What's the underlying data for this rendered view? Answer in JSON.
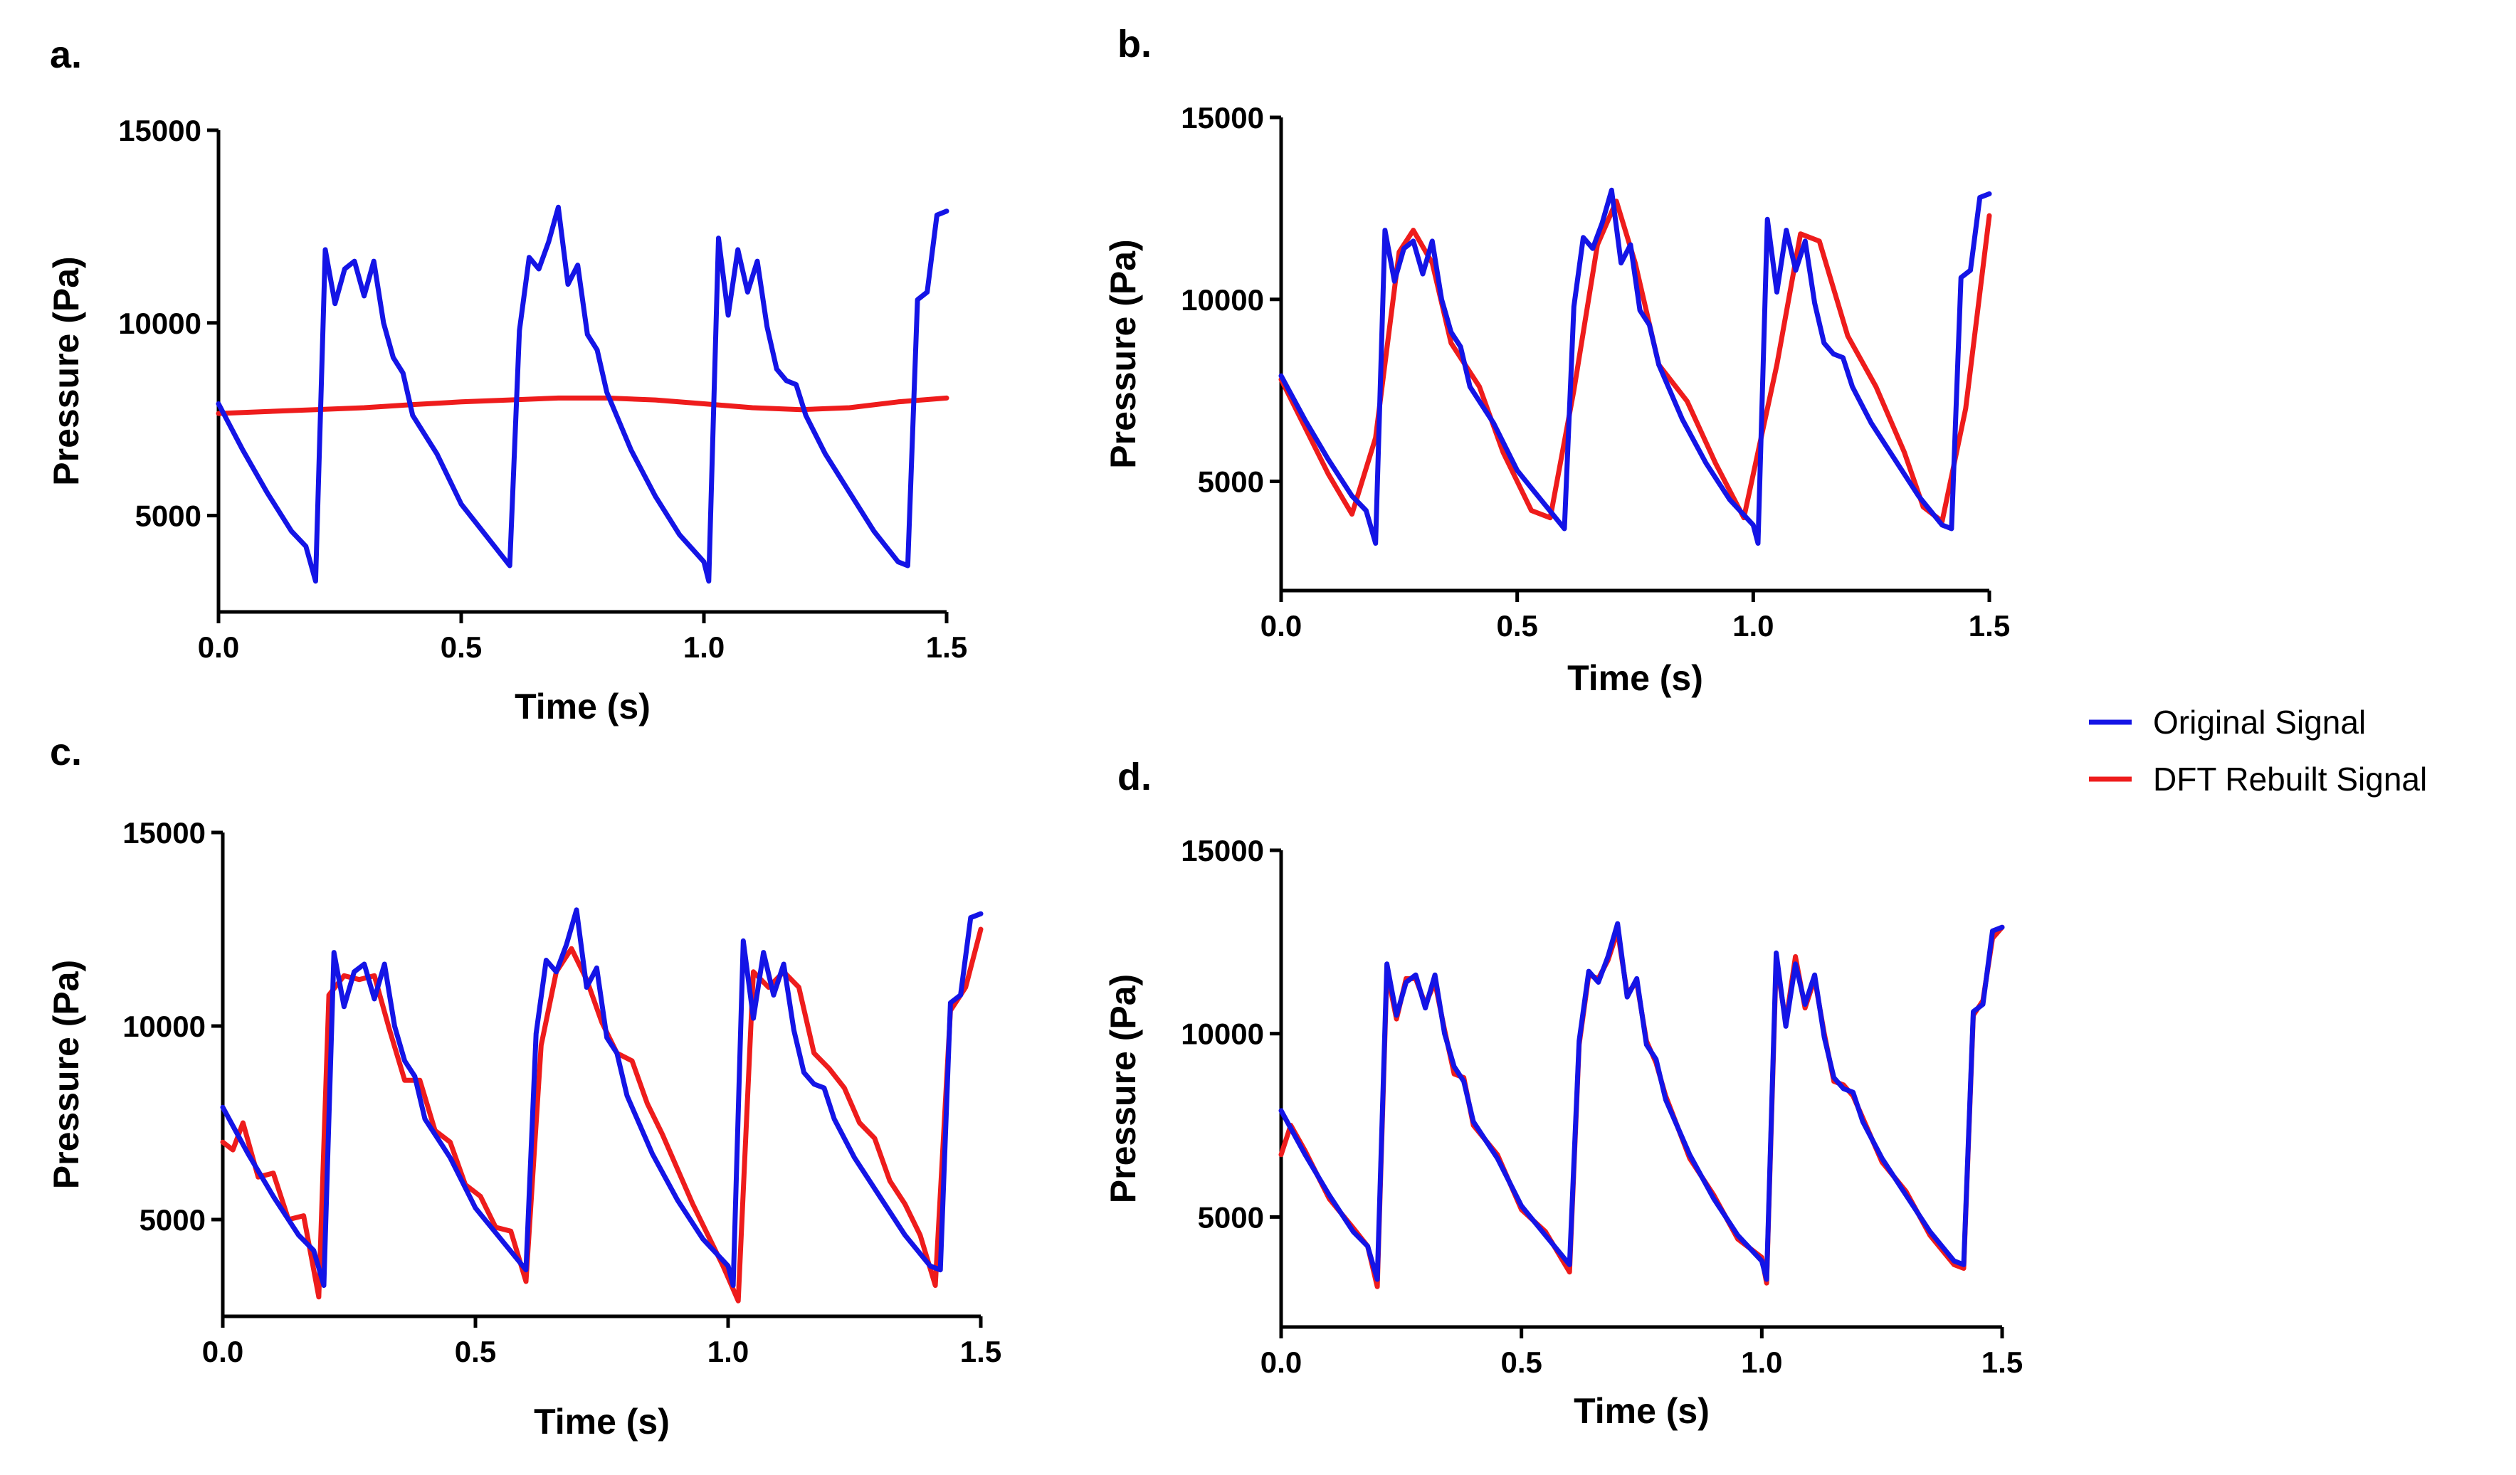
{
  "legend": {
    "position": "right",
    "items": [
      {
        "name": "Original Signal",
        "color": "#1414e6"
      },
      {
        "name": "DFT Rebuilt Signal",
        "color": "#ee1c1c"
      }
    ]
  },
  "chart_data": [
    {
      "type": "line",
      "panel": "a.",
      "xlabel": "Time (s)",
      "ylabel": "Pressure (Pa)",
      "xlim": [
        0,
        1.5
      ],
      "ylim": [
        2500,
        15000
      ],
      "xticks": [
        "0.0",
        "0.5",
        "1.0",
        "1.5"
      ],
      "yticks": [
        "5000",
        "10000",
        "15000"
      ],
      "xtick_values": [
        0,
        0.5,
        1.0,
        1.5
      ],
      "ytick_values": [
        5000,
        10000,
        15000
      ],
      "series": [
        {
          "name": "Original Signal",
          "color": "#1414e6",
          "x": [
            0,
            0.05,
            0.1,
            0.15,
            0.18,
            0.2,
            0.22,
            0.24,
            0.26,
            0.28,
            0.3,
            0.32,
            0.34,
            0.36,
            0.38,
            0.4,
            0.45,
            0.5,
            0.55,
            0.6,
            0.62,
            0.64,
            0.66,
            0.68,
            0.7,
            0.72,
            0.74,
            0.76,
            0.78,
            0.8,
            0.85,
            0.9,
            0.95,
            1.0,
            1.01,
            1.03,
            1.05,
            1.07,
            1.09,
            1.11,
            1.13,
            1.15,
            1.17,
            1.19,
            1.21,
            1.25,
            1.3,
            1.35,
            1.4,
            1.42,
            1.44,
            1.46,
            1.48,
            1.5
          ],
          "y": [
            7900,
            6700,
            5600,
            4600,
            4200,
            3300,
            11900,
            10500,
            11400,
            11600,
            10700,
            11600,
            10000,
            9100,
            8700,
            7600,
            6600,
            5300,
            4500,
            3700,
            9800,
            11700,
            11400,
            12100,
            13000,
            11000,
            11500,
            9700,
            9300,
            8200,
            6700,
            5500,
            4500,
            3800,
            3300,
            12200,
            10200,
            11900,
            10800,
            11600,
            9900,
            8800,
            8500,
            8400,
            7600,
            6600,
            5600,
            4600,
            3800,
            3700,
            10600,
            10800,
            12800,
            12900
          ]
        },
        {
          "name": "DFT Rebuilt Signal",
          "color": "#ee1c1c",
          "x": [
            0,
            0.1,
            0.2,
            0.3,
            0.4,
            0.5,
            0.6,
            0.7,
            0.8,
            0.9,
            1.0,
            1.1,
            1.2,
            1.3,
            1.4,
            1.5
          ],
          "y": [
            7650,
            7700,
            7750,
            7800,
            7880,
            7950,
            8000,
            8050,
            8050,
            8000,
            7900,
            7800,
            7750,
            7800,
            7950,
            8050
          ]
        }
      ]
    },
    {
      "type": "line",
      "panel": "b.",
      "xlabel": "Time (s)",
      "ylabel": "Pressure (Pa)",
      "xlim": [
        0,
        1.5
      ],
      "ylim": [
        2000,
        15000
      ],
      "xticks": [
        "0.0",
        "0.5",
        "1.0",
        "1.5"
      ],
      "yticks": [
        "5000",
        "10000",
        "15000"
      ],
      "xtick_values": [
        0,
        0.5,
        1.0,
        1.5
      ],
      "ytick_values": [
        5000,
        10000,
        15000
      ],
      "series": [
        {
          "name": "Original Signal",
          "color": "#1414e6",
          "x": [
            0,
            0.05,
            0.1,
            0.15,
            0.18,
            0.2,
            0.22,
            0.24,
            0.26,
            0.28,
            0.3,
            0.32,
            0.34,
            0.36,
            0.38,
            0.4,
            0.45,
            0.5,
            0.55,
            0.6,
            0.62,
            0.64,
            0.66,
            0.68,
            0.7,
            0.72,
            0.74,
            0.76,
            0.78,
            0.8,
            0.85,
            0.9,
            0.95,
            1.0,
            1.01,
            1.03,
            1.05,
            1.07,
            1.09,
            1.11,
            1.13,
            1.15,
            1.17,
            1.19,
            1.21,
            1.25,
            1.3,
            1.35,
            1.4,
            1.42,
            1.44,
            1.46,
            1.48,
            1.5
          ],
          "y": [
            7900,
            6700,
            5600,
            4600,
            4200,
            3300,
            11900,
            10500,
            11400,
            11600,
            10700,
            11600,
            10000,
            9100,
            8700,
            7600,
            6600,
            5300,
            4500,
            3700,
            9800,
            11700,
            11400,
            12100,
            13000,
            11000,
            11500,
            9700,
            9300,
            8200,
            6700,
            5500,
            4500,
            3800,
            3300,
            12200,
            10200,
            11900,
            10800,
            11600,
            9900,
            8800,
            8500,
            8400,
            7600,
            6600,
            5600,
            4600,
            3800,
            3700,
            10600,
            10800,
            12800,
            12900
          ]
        },
        {
          "name": "DFT Rebuilt Signal",
          "color": "#ee1c1c",
          "x": [
            0,
            0.05,
            0.1,
            0.15,
            0.2,
            0.25,
            0.28,
            0.32,
            0.36,
            0.42,
            0.47,
            0.53,
            0.57,
            0.62,
            0.67,
            0.71,
            0.75,
            0.8,
            0.86,
            0.92,
            0.98,
            1.05,
            1.1,
            1.14,
            1.2,
            1.26,
            1.32,
            1.36,
            1.4,
            1.45,
            1.5
          ],
          "y": [
            7800,
            6500,
            5200,
            4100,
            6200,
            11300,
            11900,
            11000,
            8800,
            7600,
            5800,
            4200,
            4000,
            7500,
            11500,
            12700,
            11000,
            8200,
            7200,
            5500,
            4000,
            8200,
            11800,
            11600,
            9000,
            7600,
            5800,
            4300,
            3900,
            7000,
            12300
          ]
        }
      ]
    },
    {
      "type": "line",
      "panel": "c.",
      "xlabel": "Time (s)",
      "ylabel": "Pressure (Pa)",
      "xlim": [
        0,
        1.5
      ],
      "ylim": [
        2500,
        15000
      ],
      "xticks": [
        "0.0",
        "0.5",
        "1.0",
        "1.5"
      ],
      "yticks": [
        "5000",
        "10000",
        "15000"
      ],
      "xtick_values": [
        0,
        0.5,
        1.0,
        1.5
      ],
      "ytick_values": [
        5000,
        10000,
        15000
      ],
      "series": [
        {
          "name": "Original Signal",
          "color": "#1414e6",
          "x": [
            0,
            0.05,
            0.1,
            0.15,
            0.18,
            0.2,
            0.22,
            0.24,
            0.26,
            0.28,
            0.3,
            0.32,
            0.34,
            0.36,
            0.38,
            0.4,
            0.45,
            0.5,
            0.55,
            0.6,
            0.62,
            0.64,
            0.66,
            0.68,
            0.7,
            0.72,
            0.74,
            0.76,
            0.78,
            0.8,
            0.85,
            0.9,
            0.95,
            1.0,
            1.01,
            1.03,
            1.05,
            1.07,
            1.09,
            1.11,
            1.13,
            1.15,
            1.17,
            1.19,
            1.21,
            1.25,
            1.3,
            1.35,
            1.4,
            1.42,
            1.44,
            1.46,
            1.48,
            1.5
          ],
          "y": [
            7900,
            6700,
            5600,
            4600,
            4200,
            3300,
            11900,
            10500,
            11400,
            11600,
            10700,
            11600,
            10000,
            9100,
            8700,
            7600,
            6600,
            5300,
            4500,
            3700,
            9800,
            11700,
            11400,
            12100,
            13000,
            11000,
            11500,
            9700,
            9300,
            8200,
            6700,
            5500,
            4500,
            3800,
            3300,
            12200,
            10200,
            11900,
            10800,
            11600,
            9900,
            8800,
            8500,
            8400,
            7600,
            6600,
            5600,
            4600,
            3800,
            3700,
            10600,
            10800,
            12800,
            12900
          ]
        },
        {
          "name": "DFT Rebuilt Signal",
          "color": "#ee1c1c",
          "x": [
            0,
            0.02,
            0.04,
            0.07,
            0.1,
            0.13,
            0.16,
            0.19,
            0.21,
            0.24,
            0.27,
            0.3,
            0.33,
            0.36,
            0.39,
            0.42,
            0.45,
            0.48,
            0.51,
            0.54,
            0.57,
            0.6,
            0.63,
            0.66,
            0.69,
            0.72,
            0.75,
            0.78,
            0.81,
            0.84,
            0.87,
            0.9,
            0.93,
            0.96,
            0.99,
            1.02,
            1.05,
            1.08,
            1.11,
            1.14,
            1.17,
            1.2,
            1.23,
            1.26,
            1.29,
            1.32,
            1.35,
            1.38,
            1.41,
            1.44,
            1.47,
            1.5
          ],
          "y": [
            7000,
            6800,
            7500,
            6100,
            6200,
            5000,
            5100,
            3000,
            10800,
            11300,
            11200,
            11300,
            9900,
            8600,
            8600,
            7300,
            7000,
            5900,
            5600,
            4800,
            4700,
            3400,
            9500,
            11400,
            12000,
            11200,
            10100,
            9300,
            9100,
            8000,
            7200,
            6300,
            5400,
            4600,
            3800,
            2900,
            11400,
            11000,
            11400,
            11000,
            9300,
            8900,
            8400,
            7500,
            7100,
            6000,
            5400,
            4600,
            3300,
            10400,
            11000,
            12500
          ]
        }
      ]
    },
    {
      "type": "line",
      "panel": "d.",
      "xlabel": "Time (s)",
      "ylabel": "Pressure (Pa)",
      "xlim": [
        0,
        1.5
      ],
      "ylim": [
        2000,
        15000
      ],
      "xticks": [
        "0.0",
        "0.5",
        "1.0",
        "1.5"
      ],
      "yticks": [
        "5000",
        "10000",
        "15000"
      ],
      "xtick_values": [
        0,
        0.5,
        1.0,
        1.5
      ],
      "ytick_values": [
        5000,
        10000,
        15000
      ],
      "series": [
        {
          "name": "Original Signal",
          "color": "#1414e6",
          "x": [
            0,
            0.05,
            0.1,
            0.15,
            0.18,
            0.2,
            0.22,
            0.24,
            0.26,
            0.28,
            0.3,
            0.32,
            0.34,
            0.36,
            0.38,
            0.4,
            0.45,
            0.5,
            0.55,
            0.6,
            0.62,
            0.64,
            0.66,
            0.68,
            0.7,
            0.72,
            0.74,
            0.76,
            0.78,
            0.8,
            0.85,
            0.9,
            0.95,
            1.0,
            1.01,
            1.03,
            1.05,
            1.07,
            1.09,
            1.11,
            1.13,
            1.15,
            1.17,
            1.19,
            1.21,
            1.25,
            1.3,
            1.35,
            1.4,
            1.42,
            1.44,
            1.46,
            1.48,
            1.5
          ],
          "y": [
            7900,
            6700,
            5600,
            4600,
            4200,
            3300,
            11900,
            10500,
            11400,
            11600,
            10700,
            11600,
            10000,
            9100,
            8700,
            7600,
            6600,
            5300,
            4500,
            3700,
            9800,
            11700,
            11400,
            12100,
            13000,
            11000,
            11500,
            9700,
            9300,
            8200,
            6700,
            5500,
            4500,
            3800,
            3300,
            12200,
            10200,
            11900,
            10800,
            11600,
            9900,
            8800,
            8500,
            8400,
            7600,
            6600,
            5600,
            4600,
            3800,
            3700,
            10600,
            10800,
            12800,
            12900
          ]
        },
        {
          "name": "DFT Rebuilt Signal",
          "color": "#ee1c1c",
          "x": [
            0,
            0.02,
            0.05,
            0.1,
            0.15,
            0.18,
            0.2,
            0.22,
            0.24,
            0.26,
            0.28,
            0.3,
            0.32,
            0.34,
            0.36,
            0.38,
            0.4,
            0.45,
            0.5,
            0.55,
            0.6,
            0.62,
            0.64,
            0.66,
            0.68,
            0.7,
            0.72,
            0.74,
            0.76,
            0.78,
            0.8,
            0.85,
            0.9,
            0.95,
            1.0,
            1.01,
            1.03,
            1.05,
            1.07,
            1.09,
            1.11,
            1.13,
            1.15,
            1.17,
            1.19,
            1.21,
            1.25,
            1.3,
            1.35,
            1.4,
            1.42,
            1.44,
            1.46,
            1.48,
            1.5
          ],
          "y": [
            6700,
            7500,
            6800,
            5500,
            4700,
            4200,
            3100,
            11700,
            10400,
            11500,
            11500,
            10800,
            11400,
            10100,
            8900,
            8800,
            7500,
            6700,
            5200,
            4600,
            3500,
            9700,
            11600,
            11500,
            12000,
            12800,
            11100,
            11400,
            9800,
            9200,
            8300,
            6600,
            5600,
            4400,
            3900,
            3200,
            12000,
            10300,
            12100,
            10700,
            11500,
            10000,
            8700,
            8600,
            8300,
            7700,
            6500,
            5700,
            4500,
            3700,
            3600,
            10500,
            10900,
            12600,
            12900
          ]
        }
      ]
    }
  ]
}
